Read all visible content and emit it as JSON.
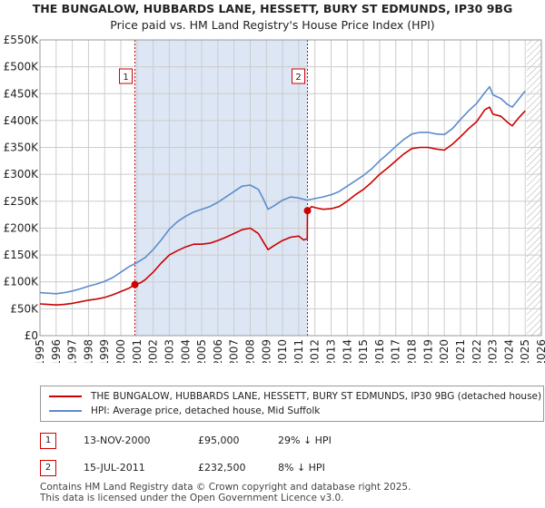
{
  "title": {
    "line1": "THE BUNGALOW, HUBBARDS LANE, HESSETT, BURY ST EDMUNDS, IP30 9BG",
    "line2": "Price paid vs. HM Land Registry's House Price Index (HPI)"
  },
  "colors": {
    "red": "#cc0000",
    "blue": "#5b8ccc",
    "shade": "#dde6f4",
    "grid": "#cccccc",
    "hatch": "#999999"
  },
  "chart_data": {
    "type": "line",
    "xlim": [
      1995,
      2026
    ],
    "ylim": [
      0,
      550000
    ],
    "x_ticks": [
      "1995",
      "1996",
      "1997",
      "1998",
      "1999",
      "2000",
      "2001",
      "2002",
      "2003",
      "2004",
      "2005",
      "2006",
      "2007",
      "2008",
      "2009",
      "2010",
      "2011",
      "2012",
      "2013",
      "2014",
      "2015",
      "2016",
      "2017",
      "2018",
      "2019",
      "2020",
      "2021",
      "2022",
      "2023",
      "2024",
      "2025",
      "2026"
    ],
    "y_ticks": [
      {
        "value": 0,
        "label": "£0"
      },
      {
        "value": 50000,
        "label": "£50K"
      },
      {
        "value": 100000,
        "label": "£100K"
      },
      {
        "value": 150000,
        "label": "£150K"
      },
      {
        "value": 200000,
        "label": "£200K"
      },
      {
        "value": 250000,
        "label": "£250K"
      },
      {
        "value": 300000,
        "label": "£300K"
      },
      {
        "value": 350000,
        "label": "£350K"
      },
      {
        "value": 400000,
        "label": "£400K"
      },
      {
        "value": 450000,
        "label": "£450K"
      },
      {
        "value": 500000,
        "label": "£500K"
      },
      {
        "value": 550000,
        "label": "£550K"
      }
    ],
    "shaded_period": [
      2000.87,
      2011.54
    ],
    "future_hatch_from": 2025.1,
    "series": [
      {
        "name": "THE BUNGALOW, HUBBARDS LANE, HESSETT, BURY ST EDMUNDS, IP30 9BG (detached house)",
        "color": "#cc0000",
        "points": [
          [
            1995.0,
            59000
          ],
          [
            1995.5,
            58000
          ],
          [
            1996.0,
            57000
          ],
          [
            1996.5,
            58000
          ],
          [
            1997.0,
            60000
          ],
          [
            1997.5,
            63000
          ],
          [
            1998.0,
            66000
          ],
          [
            1998.5,
            68000
          ],
          [
            1999.0,
            71000
          ],
          [
            1999.5,
            76000
          ],
          [
            2000.0,
            82000
          ],
          [
            2000.5,
            88000
          ],
          [
            2000.87,
            95000
          ],
          [
            2001.2,
            98000
          ],
          [
            2001.5,
            104000
          ],
          [
            2002.0,
            118000
          ],
          [
            2002.5,
            135000
          ],
          [
            2003.0,
            150000
          ],
          [
            2003.5,
            158000
          ],
          [
            2004.0,
            165000
          ],
          [
            2004.5,
            170000
          ],
          [
            2005.0,
            170000
          ],
          [
            2005.5,
            172000
          ],
          [
            2006.0,
            177000
          ],
          [
            2006.5,
            183000
          ],
          [
            2007.0,
            190000
          ],
          [
            2007.5,
            197000
          ],
          [
            2008.0,
            200000
          ],
          [
            2008.5,
            190000
          ],
          [
            2008.8,
            175000
          ],
          [
            2009.1,
            160000
          ],
          [
            2009.5,
            168000
          ],
          [
            2010.0,
            177000
          ],
          [
            2010.5,
            183000
          ],
          [
            2011.0,
            185000
          ],
          [
            2011.3,
            178000
          ],
          [
            2011.53,
            180000
          ],
          [
            2011.54,
            232500
          ],
          [
            2011.8,
            240000
          ],
          [
            2012.0,
            238000
          ],
          [
            2012.5,
            235000
          ],
          [
            2013.0,
            236000
          ],
          [
            2013.5,
            240000
          ],
          [
            2014.0,
            250000
          ],
          [
            2014.5,
            262000
          ],
          [
            2015.0,
            272000
          ],
          [
            2015.5,
            285000
          ],
          [
            2016.0,
            300000
          ],
          [
            2016.5,
            312000
          ],
          [
            2017.0,
            325000
          ],
          [
            2017.5,
            338000
          ],
          [
            2018.0,
            348000
          ],
          [
            2018.5,
            350000
          ],
          [
            2019.0,
            350000
          ],
          [
            2019.5,
            347000
          ],
          [
            2020.0,
            345000
          ],
          [
            2020.5,
            356000
          ],
          [
            2021.0,
            370000
          ],
          [
            2021.5,
            385000
          ],
          [
            2022.0,
            398000
          ],
          [
            2022.5,
            420000
          ],
          [
            2022.8,
            425000
          ],
          [
            2023.0,
            412000
          ],
          [
            2023.5,
            408000
          ],
          [
            2023.9,
            397000
          ],
          [
            2024.2,
            390000
          ],
          [
            2024.6,
            405000
          ],
          [
            2025.0,
            418000
          ]
        ]
      },
      {
        "name": "HPI: Average price, detached house, Mid Suffolk",
        "color": "#5b8ccc",
        "points": [
          [
            1995.0,
            80000
          ],
          [
            1995.5,
            79000
          ],
          [
            1996.0,
            78000
          ],
          [
            1996.5,
            80000
          ],
          [
            1997.0,
            83000
          ],
          [
            1997.5,
            87000
          ],
          [
            1998.0,
            92000
          ],
          [
            1998.5,
            96000
          ],
          [
            1999.0,
            101000
          ],
          [
            1999.5,
            108000
          ],
          [
            2000.0,
            118000
          ],
          [
            2000.5,
            128000
          ],
          [
            2001.0,
            136000
          ],
          [
            2001.5,
            145000
          ],
          [
            2002.0,
            160000
          ],
          [
            2002.5,
            178000
          ],
          [
            2003.0,
            198000
          ],
          [
            2003.5,
            212000
          ],
          [
            2004.0,
            222000
          ],
          [
            2004.5,
            230000
          ],
          [
            2005.0,
            235000
          ],
          [
            2005.5,
            240000
          ],
          [
            2006.0,
            248000
          ],
          [
            2006.5,
            258000
          ],
          [
            2007.0,
            268000
          ],
          [
            2007.5,
            278000
          ],
          [
            2008.0,
            280000
          ],
          [
            2008.5,
            272000
          ],
          [
            2008.8,
            255000
          ],
          [
            2009.1,
            235000
          ],
          [
            2009.5,
            242000
          ],
          [
            2010.0,
            252000
          ],
          [
            2010.5,
            258000
          ],
          [
            2011.0,
            256000
          ],
          [
            2011.5,
            252000
          ],
          [
            2012.0,
            255000
          ],
          [
            2012.5,
            258000
          ],
          [
            2013.0,
            262000
          ],
          [
            2013.5,
            268000
          ],
          [
            2014.0,
            278000
          ],
          [
            2014.5,
            288000
          ],
          [
            2015.0,
            298000
          ],
          [
            2015.5,
            310000
          ],
          [
            2016.0,
            325000
          ],
          [
            2016.5,
            338000
          ],
          [
            2017.0,
            352000
          ],
          [
            2017.5,
            365000
          ],
          [
            2018.0,
            375000
          ],
          [
            2018.5,
            378000
          ],
          [
            2019.0,
            378000
          ],
          [
            2019.5,
            375000
          ],
          [
            2020.0,
            374000
          ],
          [
            2020.5,
            385000
          ],
          [
            2021.0,
            402000
          ],
          [
            2021.5,
            418000
          ],
          [
            2022.0,
            432000
          ],
          [
            2022.5,
            452000
          ],
          [
            2022.8,
            463000
          ],
          [
            2023.0,
            448000
          ],
          [
            2023.5,
            441000
          ],
          [
            2023.9,
            430000
          ],
          [
            2024.2,
            425000
          ],
          [
            2024.6,
            440000
          ],
          [
            2025.0,
            455000
          ]
        ]
      }
    ],
    "markers": [
      {
        "label": "1",
        "x": 2000.87,
        "y": 95000
      },
      {
        "label": "2",
        "x": 2011.54,
        "y": 232500
      }
    ]
  },
  "legend": [
    {
      "label": "THE BUNGALOW, HUBBARDS LANE, HESSETT, BURY ST EDMUNDS, IP30 9BG (detached house)",
      "color": "#cc0000"
    },
    {
      "label": "HPI: Average price, detached house, Mid Suffolk",
      "color": "#5b8ccc"
    }
  ],
  "transactions": [
    {
      "num": "1",
      "date": "13-NOV-2000",
      "price": "£95,000",
      "hpi": "29% ↓ HPI"
    },
    {
      "num": "2",
      "date": "15-JUL-2011",
      "price": "£232,500",
      "hpi": "8% ↓ HPI"
    }
  ],
  "footer": {
    "line1": "Contains HM Land Registry data © Crown copyright and database right 2025.",
    "line2": "This data is licensed under the Open Government Licence v3.0."
  }
}
